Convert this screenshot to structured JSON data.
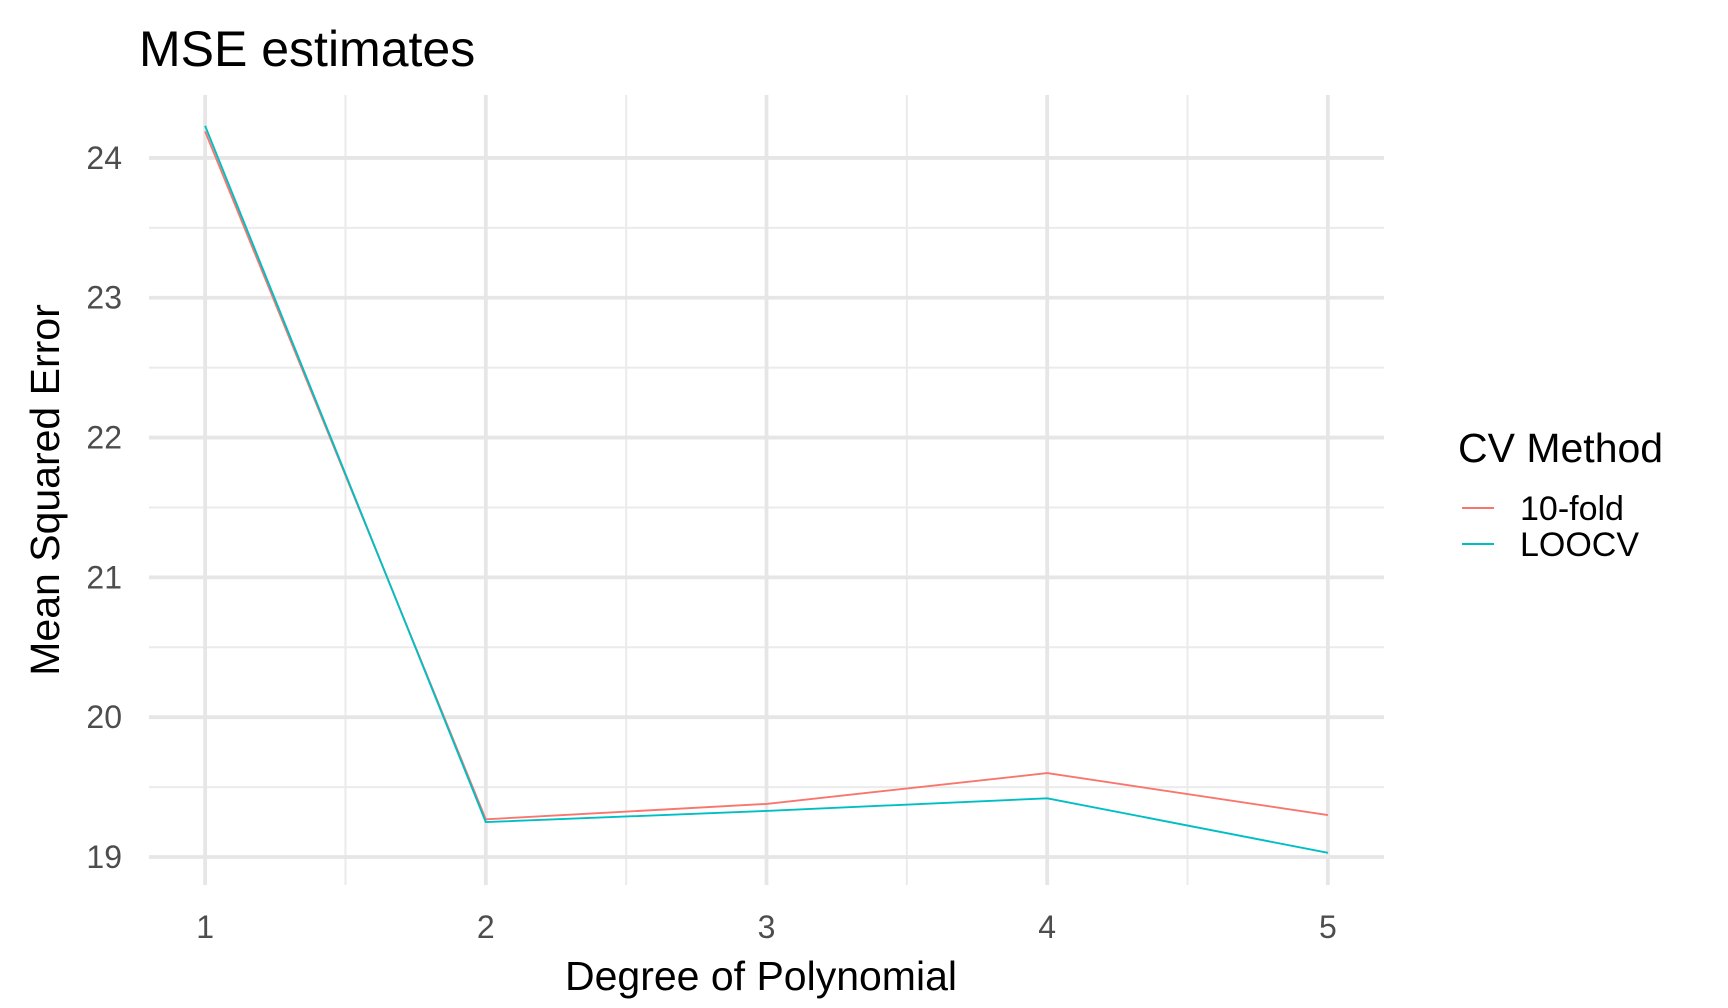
{
  "chart_data": {
    "type": "line",
    "title": "MSE estimates",
    "xlabel": "Degree of Polynomial",
    "ylabel": "Mean Squared Error",
    "x": [
      1,
      2,
      3,
      4,
      5
    ],
    "xticks": [
      "1",
      "2",
      "3",
      "4",
      "5"
    ],
    "yticks": [
      "19",
      "20",
      "21",
      "22",
      "23",
      "24"
    ],
    "xlim": [
      0.8,
      5.2
    ],
    "ylim": [
      18.8,
      24.45
    ],
    "grid": true,
    "legend": {
      "title": "CV Method",
      "position": "right"
    },
    "series": [
      {
        "name": "10-fold",
        "color": "#F8766D",
        "values": [
          24.19,
          19.27,
          19.38,
          19.6,
          19.3
        ]
      },
      {
        "name": "LOOCV",
        "color": "#00BFC4",
        "values": [
          24.23,
          19.25,
          19.33,
          19.42,
          19.03
        ]
      }
    ]
  }
}
